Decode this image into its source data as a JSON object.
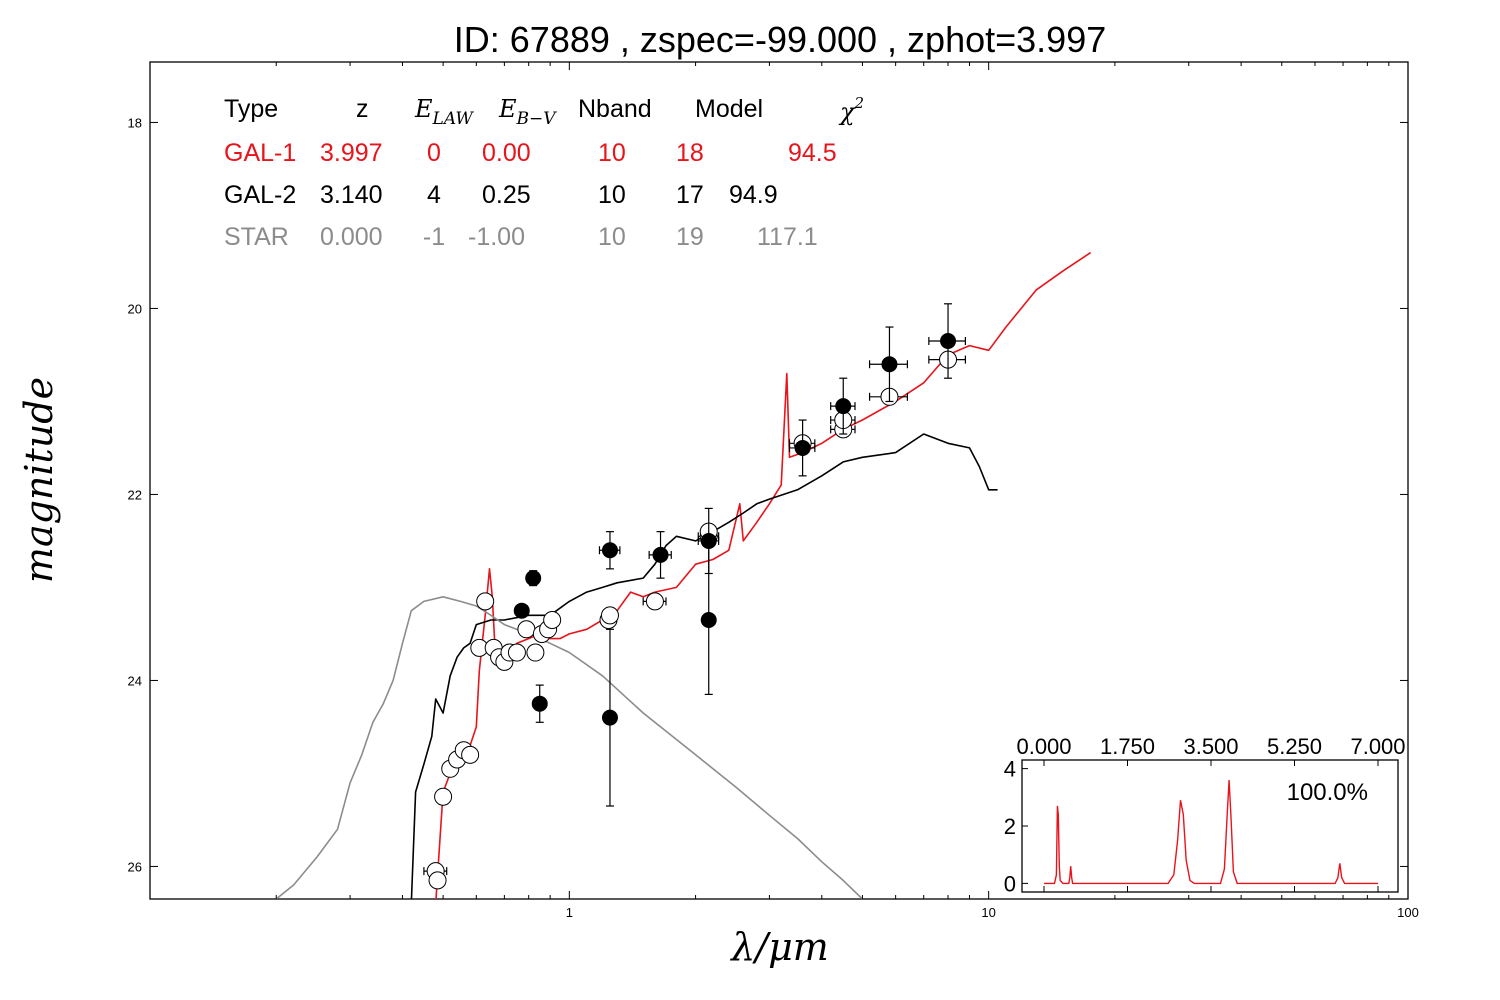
{
  "chart_data": {
    "type": "line",
    "title": "ID:  67889 , zspec=-99.000 , zphot=3.997",
    "xlabel": "λ/μm",
    "ylabel": "magnitude",
    "xscale": "log",
    "xlim": [
      0.1,
      100
    ],
    "ylim": [
      26.35,
      17.35
    ],
    "y_inverted": true,
    "x_ticks": [
      {
        "v": 1,
        "label": "1"
      },
      {
        "v": 10,
        "label": "10"
      },
      {
        "v": 100,
        "label": "100"
      }
    ],
    "y_ticks": [
      18,
      20,
      22,
      24,
      26
    ],
    "table": {
      "headers": {
        "type": "Type",
        "z": "z",
        "elaw": "E",
        "elaw_sub": "LAW",
        "ebv": "E",
        "ebv_sub": "B−V",
        "nband": "Nband",
        "model": "Model",
        "chi": "χ",
        "chi_sup": "2"
      },
      "rows": [
        {
          "type": "GAL-1",
          "z": "3.997",
          "law": "0",
          "ebv": "0.00",
          "nband": "10",
          "model": "18",
          "chi2": "94.5",
          "color": "#e8141b"
        },
        {
          "type": "GAL-2",
          "z": "3.140",
          "law": "4",
          "ebv": "0.25",
          "nband": "10",
          "model": "17",
          "chi2": "94.9",
          "color": "#000000"
        },
        {
          "type": "STAR",
          "z": "0.000",
          "law": "-1",
          "ebv": "-1.00",
          "nband": "10",
          "model": "19",
          "chi2": "117.1",
          "color": "#8c8c8c"
        }
      ]
    },
    "series": [
      {
        "name": "GAL-1",
        "color": "#e8141b",
        "points": [
          [
            0.48,
            26.4
          ],
          [
            0.5,
            25.2
          ],
          [
            0.52,
            25.0
          ],
          [
            0.54,
            24.9
          ],
          [
            0.56,
            24.8
          ],
          [
            0.58,
            24.7
          ],
          [
            0.6,
            24.5
          ],
          [
            0.61,
            23.9
          ],
          [
            0.63,
            23.3
          ],
          [
            0.645,
            22.8
          ],
          [
            0.655,
            23.1
          ],
          [
            0.665,
            23.65
          ],
          [
            0.7,
            23.75
          ],
          [
            0.75,
            23.6
          ],
          [
            0.8,
            23.55
          ],
          [
            0.85,
            23.5
          ],
          [
            0.9,
            23.55
          ],
          [
            0.95,
            23.55
          ],
          [
            1.0,
            23.5
          ],
          [
            1.1,
            23.45
          ],
          [
            1.2,
            23.35
          ],
          [
            1.3,
            23.25
          ],
          [
            1.4,
            23.05
          ],
          [
            1.5,
            23.1
          ],
          [
            1.6,
            23.05
          ],
          [
            1.8,
            23.0
          ],
          [
            2.0,
            22.75
          ],
          [
            2.2,
            22.7
          ],
          [
            2.4,
            22.6
          ],
          [
            2.55,
            22.1
          ],
          [
            2.6,
            22.5
          ],
          [
            2.8,
            22.3
          ],
          [
            3.0,
            22.1
          ],
          [
            3.2,
            21.9
          ],
          [
            3.3,
            20.7
          ],
          [
            3.35,
            21.6
          ],
          [
            3.6,
            21.55
          ],
          [
            4.0,
            21.45
          ],
          [
            4.5,
            21.3
          ],
          [
            5.0,
            21.2
          ],
          [
            6.0,
            21.0
          ],
          [
            7.0,
            20.8
          ],
          [
            8.0,
            20.5
          ],
          [
            9.0,
            20.4
          ],
          [
            10.0,
            20.45
          ],
          [
            11.0,
            20.2
          ],
          [
            13.0,
            19.8
          ],
          [
            15.0,
            19.6
          ],
          [
            17.5,
            19.4
          ]
        ]
      },
      {
        "name": "GAL-2",
        "color": "#000000",
        "points": [
          [
            0.42,
            26.4
          ],
          [
            0.43,
            25.2
          ],
          [
            0.45,
            24.9
          ],
          [
            0.47,
            24.6
          ],
          [
            0.48,
            24.2
          ],
          [
            0.5,
            24.35
          ],
          [
            0.52,
            23.95
          ],
          [
            0.54,
            23.75
          ],
          [
            0.56,
            23.65
          ],
          [
            0.58,
            23.6
          ],
          [
            0.6,
            23.4
          ],
          [
            0.65,
            23.35
          ],
          [
            0.7,
            23.35
          ],
          [
            0.8,
            23.3
          ],
          [
            0.9,
            23.3
          ],
          [
            1.0,
            23.15
          ],
          [
            1.1,
            23.05
          ],
          [
            1.2,
            23.0
          ],
          [
            1.3,
            22.95
          ],
          [
            1.5,
            22.9
          ],
          [
            1.6,
            22.75
          ],
          [
            1.7,
            22.55
          ],
          [
            1.8,
            22.45
          ],
          [
            2.0,
            22.5
          ],
          [
            2.2,
            22.4
          ],
          [
            2.4,
            22.3
          ],
          [
            2.6,
            22.2
          ],
          [
            2.8,
            22.1
          ],
          [
            3.0,
            22.05
          ],
          [
            3.5,
            21.95
          ],
          [
            4.0,
            21.8
          ],
          [
            4.5,
            21.65
          ],
          [
            5.0,
            21.6
          ],
          [
            6.0,
            21.55
          ],
          [
            7.0,
            21.35
          ],
          [
            8.0,
            21.45
          ],
          [
            9.0,
            21.5
          ],
          [
            9.5,
            21.7
          ],
          [
            10.0,
            21.95
          ],
          [
            10.5,
            21.95
          ]
        ]
      },
      {
        "name": "STAR",
        "color": "#8c8c8c",
        "points": [
          [
            0.2,
            26.35
          ],
          [
            0.22,
            26.2
          ],
          [
            0.25,
            25.9
          ],
          [
            0.28,
            25.6
          ],
          [
            0.3,
            25.1
          ],
          [
            0.32,
            24.8
          ],
          [
            0.34,
            24.45
          ],
          [
            0.36,
            24.25
          ],
          [
            0.38,
            24.0
          ],
          [
            0.4,
            23.6
          ],
          [
            0.42,
            23.25
          ],
          [
            0.45,
            23.15
          ],
          [
            0.5,
            23.1
          ],
          [
            0.55,
            23.15
          ],
          [
            0.6,
            23.2
          ],
          [
            0.65,
            23.3
          ],
          [
            0.7,
            23.4
          ],
          [
            0.8,
            23.5
          ],
          [
            0.9,
            23.6
          ],
          [
            1.0,
            23.7
          ],
          [
            1.2,
            23.95
          ],
          [
            1.5,
            24.35
          ],
          [
            2.0,
            24.8
          ],
          [
            2.5,
            25.15
          ],
          [
            3.0,
            25.45
          ],
          [
            3.5,
            25.7
          ],
          [
            4.0,
            25.95
          ],
          [
            4.5,
            26.15
          ],
          [
            5.0,
            26.35
          ]
        ]
      }
    ],
    "observed": [
      {
        "x": 0.77,
        "y": 23.25,
        "yerr": 0.06
      },
      {
        "x": 0.82,
        "y": 22.9,
        "yerr": 0.08
      },
      {
        "x": 0.85,
        "y": 24.25,
        "yerr": 0.2
      },
      {
        "x": 1.25,
        "y": 22.6,
        "yerr": 0.2,
        "xerr": 0.07
      },
      {
        "x": 1.25,
        "y": 24.4,
        "yerr": 0.95
      },
      {
        "x": 1.65,
        "y": 22.65,
        "yerr": 0.25,
        "xerr": 0.1
      },
      {
        "x": 2.15,
        "y": 22.5,
        "yerr": 0.35,
        "xerr": 0.12
      },
      {
        "x": 2.15,
        "y": 23.35,
        "yerr": 0.8
      },
      {
        "x": 3.6,
        "y": 21.5,
        "yerr": 0.3,
        "xerr": 0.25
      },
      {
        "x": 4.5,
        "y": 21.05,
        "yerr": 0.3,
        "xerr": 0.3
      },
      {
        "x": 5.8,
        "y": 20.6,
        "yerr": 0.4,
        "xerr": 0.6
      },
      {
        "x": 8.0,
        "y": 20.35,
        "yerr": 0.4,
        "xerr": 0.8
      }
    ],
    "model_points": [
      {
        "x": 0.48,
        "y": 26.05,
        "xerr": 0.03
      },
      {
        "x": 0.485,
        "y": 26.15
      },
      {
        "x": 0.5,
        "y": 25.25
      },
      {
        "x": 0.52,
        "y": 24.95
      },
      {
        "x": 0.54,
        "y": 24.85
      },
      {
        "x": 0.56,
        "y": 24.75
      },
      {
        "x": 0.58,
        "y": 24.8
      },
      {
        "x": 0.61,
        "y": 23.65
      },
      {
        "x": 0.63,
        "y": 23.15
      },
      {
        "x": 0.66,
        "y": 23.65
      },
      {
        "x": 0.68,
        "y": 23.75
      },
      {
        "x": 0.7,
        "y": 23.8
      },
      {
        "x": 0.72,
        "y": 23.7
      },
      {
        "x": 0.75,
        "y": 23.7
      },
      {
        "x": 0.79,
        "y": 23.45
      },
      {
        "x": 0.83,
        "y": 23.7
      },
      {
        "x": 0.86,
        "y": 23.5
      },
      {
        "x": 0.89,
        "y": 23.45
      },
      {
        "x": 0.91,
        "y": 23.35
      },
      {
        "x": 1.24,
        "y": 23.35
      },
      {
        "x": 1.25,
        "y": 23.3
      },
      {
        "x": 1.6,
        "y": 23.15,
        "xerr": 0.1
      },
      {
        "x": 2.15,
        "y": 22.45,
        "xerr": 0.12
      },
      {
        "x": 2.15,
        "y": 22.4
      },
      {
        "x": 3.6,
        "y": 21.45,
        "xerr": 0.25
      },
      {
        "x": 4.5,
        "y": 21.3,
        "xerr": 0.3
      },
      {
        "x": 4.5,
        "y": 21.2,
        "xerr": 0.3
      },
      {
        "x": 5.8,
        "y": 20.95,
        "xerr": 0.6
      },
      {
        "x": 8.0,
        "y": 20.55,
        "xerr": 0.8
      }
    ],
    "inset": {
      "xlim": [
        0,
        7
      ],
      "ylim": [
        -0.3,
        4.3
      ],
      "x_ticks": [
        "0.000",
        "1.750",
        "3.500",
        "5.250",
        "7.000"
      ],
      "x_tick_values": [
        0,
        1.75,
        3.5,
        5.25,
        7.0
      ],
      "y_ticks": [
        0,
        2,
        4
      ],
      "label": "100.0%",
      "color": "#e8141b",
      "points": [
        [
          0,
          0
        ],
        [
          0.22,
          0
        ],
        [
          0.26,
          0.3
        ],
        [
          0.28,
          2.7
        ],
        [
          0.3,
          2.4
        ],
        [
          0.32,
          0.6
        ],
        [
          0.34,
          0.1
        ],
        [
          0.4,
          0
        ],
        [
          0.52,
          0
        ],
        [
          0.54,
          0.2
        ],
        [
          0.56,
          0.6
        ],
        [
          0.58,
          0.2
        ],
        [
          0.6,
          0
        ],
        [
          2.6,
          0
        ],
        [
          2.72,
          0.3
        ],
        [
          2.8,
          1.5
        ],
        [
          2.86,
          2.9
        ],
        [
          2.92,
          2.4
        ],
        [
          2.98,
          0.8
        ],
        [
          3.06,
          0.1
        ],
        [
          3.15,
          0
        ],
        [
          3.7,
          0
        ],
        [
          3.78,
          0.5
        ],
        [
          3.84,
          2.4
        ],
        [
          3.88,
          3.6
        ],
        [
          3.92,
          2.3
        ],
        [
          3.97,
          0.4
        ],
        [
          4.05,
          0
        ],
        [
          6.1,
          0
        ],
        [
          6.16,
          0.2
        ],
        [
          6.2,
          0.7
        ],
        [
          6.24,
          0.2
        ],
        [
          6.3,
          0
        ],
        [
          7.0,
          0
        ]
      ]
    }
  }
}
